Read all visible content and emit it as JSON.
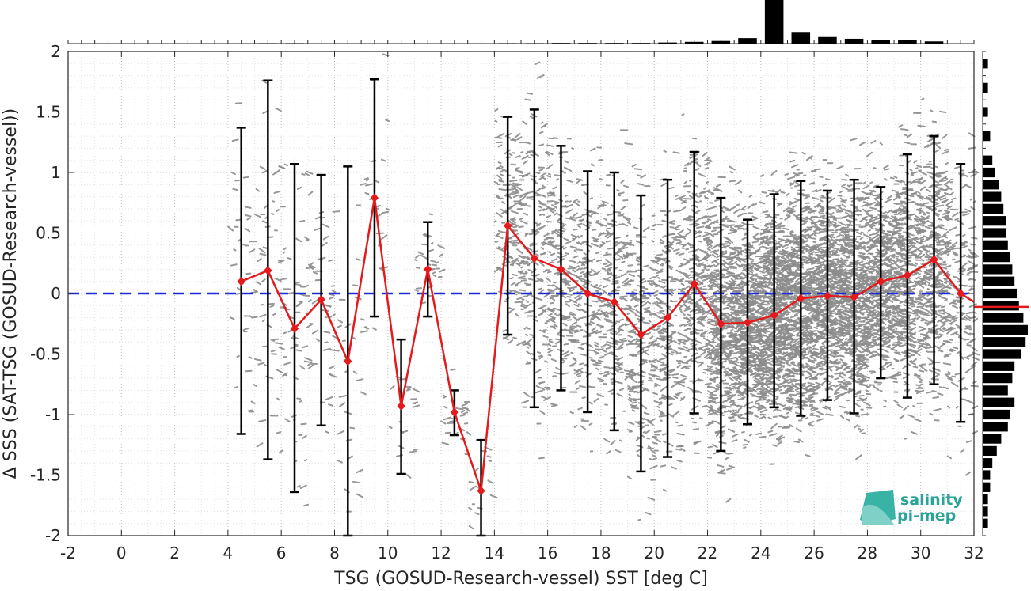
{
  "chart_data": {
    "type": "scatter",
    "xlabel": "TSG (GOSUD-Research-vessel) SST [deg C]",
    "ylabel": "Δ SSS (SAT-TSG (GOSUD-Research-vessel))",
    "xlim": [
      -2,
      32
    ],
    "ylim": [
      -2,
      2
    ],
    "x_ticks": [
      -2,
      0,
      2,
      4,
      6,
      8,
      10,
      12,
      14,
      16,
      18,
      20,
      22,
      24,
      26,
      28,
      30,
      32
    ],
    "y_ticks": [
      -2,
      -1.5,
      -1,
      -0.5,
      0,
      0.5,
      1,
      1.5,
      2
    ],
    "grid": "dotted",
    "zero_line": 0,
    "binned_mean": {
      "x": [
        4.5,
        5.5,
        6.5,
        7.5,
        8.5,
        9.5,
        10.5,
        11.5,
        12.5,
        13.5,
        14.5,
        15.5,
        16.5,
        17.5,
        18.5,
        19.5,
        20.5,
        21.5,
        22.5,
        23.5,
        24.5,
        25.5,
        26.5,
        27.5,
        28.5,
        29.5,
        30.5,
        31.5
      ],
      "mean": [
        0.1,
        0.19,
        -0.29,
        -0.05,
        -0.56,
        0.79,
        -0.93,
        0.2,
        -0.98,
        -1.63,
        0.56,
        0.29,
        0.2,
        0.0,
        -0.07,
        -0.34,
        -0.2,
        0.08,
        -0.25,
        -0.24,
        -0.18,
        -0.04,
        -0.02,
        -0.03,
        0.1,
        0.15,
        0.28,
        0.0
      ],
      "upper": [
        1.37,
        1.76,
        1.07,
        0.98,
        1.05,
        1.77,
        -0.38,
        0.59,
        -0.8,
        -1.21,
        1.46,
        1.52,
        1.22,
        1.01,
        1.0,
        0.81,
        0.94,
        1.17,
        0.79,
        0.61,
        0.82,
        0.93,
        0.85,
        0.94,
        0.88,
        1.15,
        1.3,
        1.07
      ],
      "lower": [
        -1.16,
        -1.37,
        -1.64,
        -1.09,
        -2.0,
        -0.19,
        -1.49,
        -0.19,
        -1.17,
        -2.0,
        -0.34,
        -0.94,
        -0.8,
        -0.98,
        -1.13,
        -1.47,
        -1.35,
        -0.99,
        -1.3,
        -1.08,
        -0.94,
        -1.01,
        -0.88,
        -0.99,
        -0.7,
        -0.86,
        -0.75,
        -1.06
      ]
    },
    "top_histogram": {
      "bins": [
        5.5,
        6.5,
        14.5,
        15.5,
        16.5,
        17.5,
        18.5,
        19.5,
        20.5,
        21.5,
        22.5,
        23.5,
        24.5,
        25.5,
        26.5,
        27.5,
        28.5,
        29.5,
        30.5
      ],
      "counts": [
        0.2,
        0.2,
        0.2,
        0.2,
        0.3,
        0.3,
        0.3,
        0.3,
        0.5,
        0.8,
        1.2,
        2.5,
        20,
        5,
        3,
        2.2,
        1.5,
        1.5,
        1
      ]
    },
    "right_histogram": {
      "bins": [
        1.9,
        1.7,
        1.5,
        1.3,
        1.1,
        1.0,
        0.9,
        0.8,
        0.7,
        0.6,
        0.5,
        0.4,
        0.3,
        0.2,
        0.1,
        0.0,
        -0.1,
        -0.2,
        -0.3,
        -0.4,
        -0.5,
        -0.6,
        -0.7,
        -0.8,
        -0.9,
        -1.0,
        -1.1,
        -1.2,
        -1.3,
        -1.4,
        -1.5,
        -1.6,
        -1.7,
        -1.8,
        -1.9
      ],
      "counts": [
        2,
        2,
        2,
        3,
        4,
        5,
        7,
        8,
        9,
        10,
        10,
        11,
        12,
        13,
        14,
        15,
        16,
        18,
        20,
        19,
        17,
        14,
        13,
        11,
        14,
        12,
        11,
        8,
        6,
        4,
        3,
        3,
        2,
        2,
        2
      ],
      "median": -0.11
    },
    "colors": {
      "mean": "#e41a1c",
      "scatter": "#8c8c8c",
      "zero_line": "#1f2bd6",
      "errorbar": "#000000",
      "histogram": "#000000"
    }
  },
  "logo": {
    "line1": "salinity",
    "line2": "pi-mep"
  }
}
